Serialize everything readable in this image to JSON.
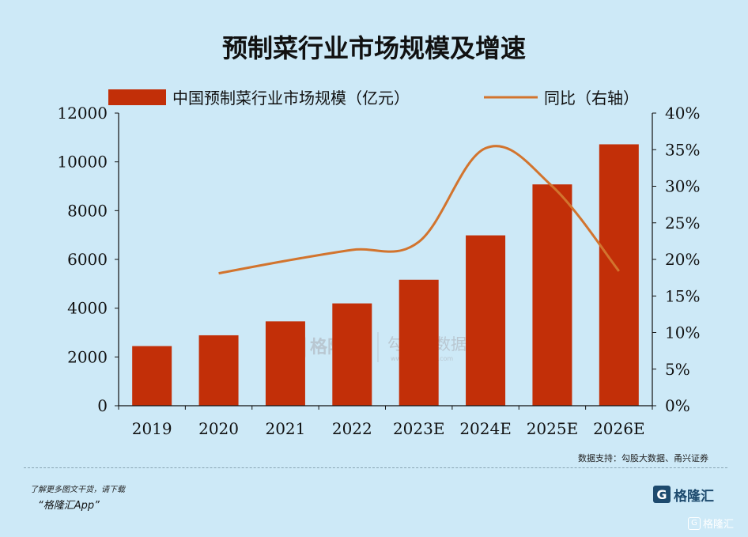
{
  "title": "预制菜行业市场规模及增速",
  "source": "数据支持：勾股大数据、甬兴证券",
  "promo_line1": "了解更多图文干货，请下载",
  "promo_line2": "“格隆汇App”",
  "brand_g": "G",
  "brand_name": "格隆汇",
  "corner_label": "格隆汇",
  "watermark": {
    "brand": "格隆汇",
    "sub_brand": "勾股大数据",
    "url": "www.gogudata.com"
  },
  "colors": {
    "bar": "#c22f08",
    "line": "#d2742e",
    "background": "#cde9f7"
  },
  "chart_data": {
    "type": "bar",
    "categories": [
      "2019",
      "2020",
      "2021",
      "2022",
      "2023E",
      "2024E",
      "2025E",
      "2026E"
    ],
    "series": [
      {
        "name": "中国预制菜行业市场规模（亿元）",
        "type": "bar",
        "axis": "left",
        "values": [
          2445,
          2888,
          3459,
          4196,
          5165,
          6986,
          9076,
          10720
        ]
      },
      {
        "name": "同比（右轴）",
        "type": "line",
        "axis": "right",
        "values": [
          null,
          18.1,
          19.8,
          21.3,
          22.4,
          35.2,
          30.0,
          18.4
        ]
      }
    ],
    "left_axis": {
      "ylim": [
        0,
        12000
      ],
      "ticks": [
        "0",
        "2000",
        "4000",
        "6000",
        "8000",
        "10000",
        "12000"
      ]
    },
    "right_axis": {
      "ylim": [
        0,
        40
      ],
      "ticks": [
        "0%",
        "5%",
        "10%",
        "15%",
        "20%",
        "25%",
        "30%",
        "35%",
        "40%"
      ]
    },
    "legend_position": "top",
    "grid": false
  }
}
